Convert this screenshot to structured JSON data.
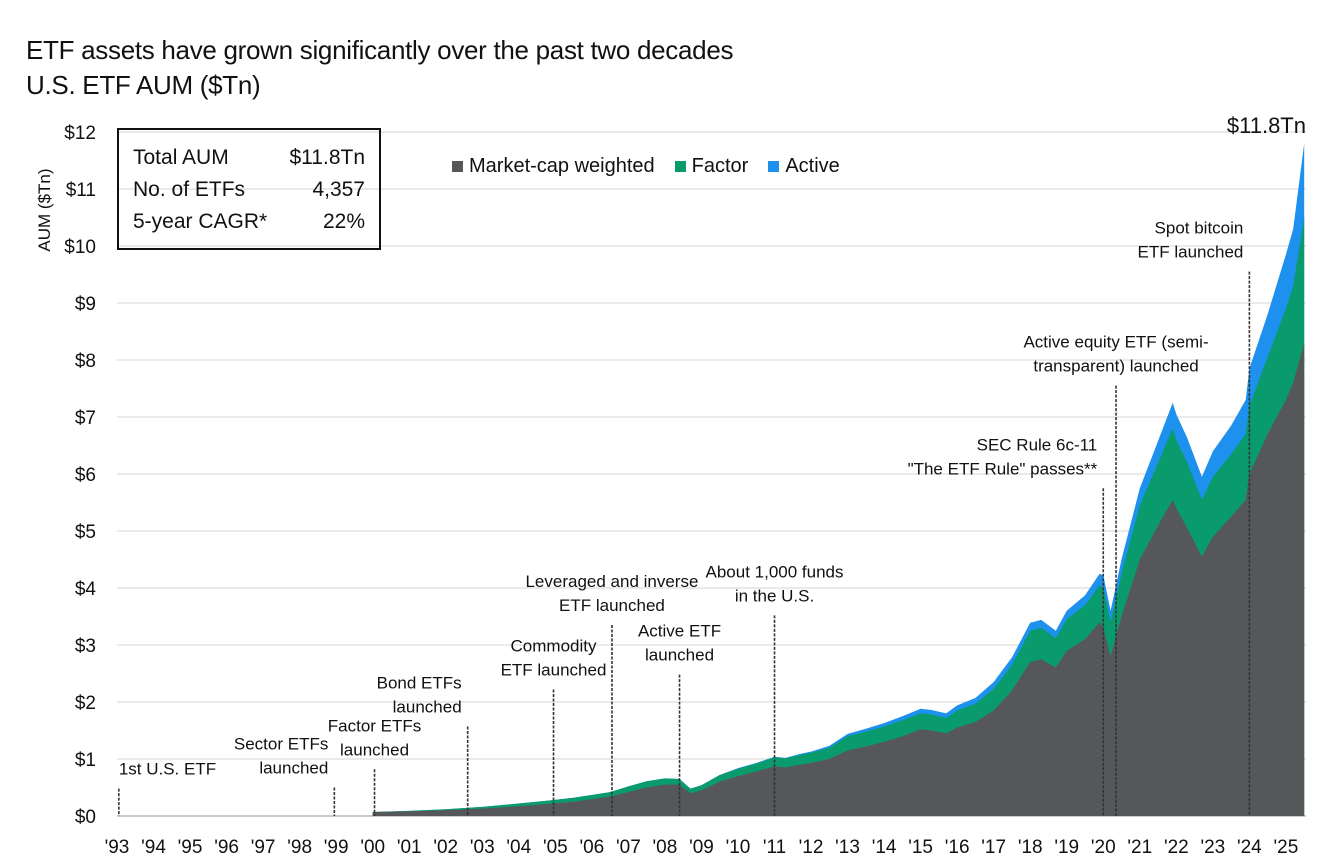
{
  "title": "ETF assets have grown significantly over the past two decades",
  "subtitle": "U.S. ETF AUM ($Tn)",
  "stats_box": [
    {
      "label": "Total AUM",
      "value": "$11.8Tn"
    },
    {
      "label": "No. of ETFs",
      "value": "4,357"
    },
    {
      "label": "5-year CAGR*",
      "value": "22%"
    }
  ],
  "end_label": "$11.8Tn",
  "colors": {
    "market_cap": "#555759",
    "factor": "#0a9b6c",
    "active": "#1e90ee",
    "marker": "#333333"
  },
  "chart_data": {
    "type": "area",
    "stacked": true,
    "ylabel": "AUM ($Tn)",
    "ylim": [
      0,
      12
    ],
    "xlim": [
      1993,
      2025.55
    ],
    "yticks": [
      "$0",
      "$1",
      "$2",
      "$3",
      "$4",
      "$5",
      "$6",
      "$7",
      "$8",
      "$9",
      "$10",
      "$11",
      "$12"
    ],
    "xticks": [
      "'93",
      "'94",
      "'95",
      "'96",
      "'97",
      "'98",
      "'99",
      "'00",
      "'01",
      "'02",
      "'03",
      "'04",
      "'05",
      "'06",
      "'07",
      "'08",
      "'09",
      "'10",
      "'11",
      "'12",
      "'13",
      "'14",
      "'15",
      "'16",
      "'17",
      "'18",
      "'19",
      "'20",
      "'21",
      "'22",
      "'23",
      "'24",
      "'25"
    ],
    "legend": [
      "Market-cap weighted",
      "Factor",
      "Active"
    ],
    "x": [
      2000.0,
      2001.0,
      2002.0,
      2003.0,
      2004.0,
      2004.8,
      2005.5,
      2006.5,
      2007.0,
      2007.5,
      2008.0,
      2008.4,
      2008.7,
      2009.0,
      2009.5,
      2010.0,
      2010.5,
      2011.0,
      2011.3,
      2011.7,
      2012.0,
      2012.5,
      2013.0,
      2013.5,
      2014.0,
      2014.5,
      2015.0,
      2015.3,
      2015.7,
      2016.0,
      2016.5,
      2017.0,
      2017.5,
      2018.0,
      2018.3,
      2018.7,
      2019.0,
      2019.5,
      2019.9,
      2020.0,
      2020.2,
      2020.5,
      2021.0,
      2021.5,
      2021.9,
      2022.0,
      2022.3,
      2022.7,
      2023.0,
      2023.5,
      2023.9,
      2024.0,
      2024.5,
      2025.0,
      2025.2,
      2025.5
    ],
    "series": [
      {
        "name": "Market-cap weighted",
        "values": [
          0.07,
          0.08,
          0.1,
          0.13,
          0.17,
          0.21,
          0.25,
          0.34,
          0.42,
          0.5,
          0.55,
          0.55,
          0.4,
          0.45,
          0.6,
          0.7,
          0.78,
          0.87,
          0.85,
          0.9,
          0.93,
          1.0,
          1.15,
          1.22,
          1.3,
          1.4,
          1.52,
          1.5,
          1.45,
          1.55,
          1.65,
          1.85,
          2.2,
          2.7,
          2.75,
          2.6,
          2.9,
          3.1,
          3.4,
          3.3,
          2.8,
          3.5,
          4.5,
          5.1,
          5.55,
          5.4,
          5.05,
          4.55,
          4.9,
          5.25,
          5.55,
          6.0,
          6.7,
          7.3,
          7.6,
          8.3
        ]
      },
      {
        "name": "Factor",
        "values": [
          0.0,
          0.01,
          0.02,
          0.03,
          0.05,
          0.06,
          0.07,
          0.08,
          0.1,
          0.11,
          0.11,
          0.1,
          0.08,
          0.09,
          0.12,
          0.13,
          0.14,
          0.16,
          0.16,
          0.17,
          0.18,
          0.2,
          0.25,
          0.26,
          0.27,
          0.28,
          0.28,
          0.28,
          0.27,
          0.3,
          0.32,
          0.38,
          0.45,
          0.55,
          0.55,
          0.52,
          0.55,
          0.6,
          0.65,
          0.7,
          0.6,
          0.75,
          0.95,
          1.1,
          1.25,
          1.2,
          1.15,
          1.0,
          1.05,
          1.1,
          1.15,
          1.2,
          1.35,
          1.6,
          1.7,
          2.2
        ]
      },
      {
        "name": "Active",
        "values": [
          0.0,
          0.0,
          0.0,
          0.0,
          0.0,
          0.0,
          0.0,
          0.0,
          0.0,
          0.0,
          0.0,
          0.0,
          0.0,
          0.0,
          0.0,
          0.01,
          0.01,
          0.01,
          0.01,
          0.02,
          0.02,
          0.03,
          0.04,
          0.05,
          0.06,
          0.07,
          0.08,
          0.08,
          0.08,
          0.09,
          0.1,
          0.12,
          0.13,
          0.14,
          0.14,
          0.13,
          0.15,
          0.17,
          0.2,
          0.22,
          0.2,
          0.25,
          0.3,
          0.38,
          0.45,
          0.45,
          0.43,
          0.4,
          0.45,
          0.5,
          0.6,
          0.65,
          0.75,
          0.95,
          1.0,
          1.3
        ]
      }
    ],
    "annotations": [
      {
        "x": 1993.05,
        "y_top": 0.48,
        "lines": [
          "1st U.S. ETF"
        ],
        "align": "start"
      },
      {
        "x": 1998.95,
        "y_top": 0.5,
        "lines": [
          "Sector ETFs",
          "launched"
        ],
        "align": "end"
      },
      {
        "x": 2000.05,
        "y_top": 0.82,
        "lines": [
          "Factor ETFs",
          "launched"
        ],
        "align": "middle"
      },
      {
        "x": 2002.6,
        "y_top": 1.57,
        "lines": [
          "Bond ETFs",
          "launched"
        ],
        "align": "end"
      },
      {
        "x": 2004.95,
        "y_top": 2.22,
        "lines": [
          "Commodity",
          "ETF launched"
        ],
        "align": "middle"
      },
      {
        "x": 2006.55,
        "y_top": 3.35,
        "lines": [
          "Leveraged and inverse",
          "ETF launched"
        ],
        "align": "middle"
      },
      {
        "x": 2008.4,
        "y_top": 2.48,
        "lines": [
          "Active ETF",
          "launched"
        ],
        "align": "middle"
      },
      {
        "x": 2011.0,
        "y_top": 3.52,
        "lines": [
          "About 1,000 funds",
          "in the U.S."
        ],
        "align": "middle"
      },
      {
        "x": 2020.0,
        "y_top": 5.75,
        "lines": [
          "SEC Rule 6c-11",
          "\"The ETF Rule\" passes**"
        ],
        "align": "end"
      },
      {
        "x": 2020.35,
        "y_top": 7.55,
        "lines": [
          "Active equity ETF (semi-",
          "transparent) launched"
        ],
        "align": "middle"
      },
      {
        "x": 2024.0,
        "y_top": 9.55,
        "lines": [
          "Spot bitcoin",
          "ETF launched"
        ],
        "align": "end"
      }
    ]
  }
}
